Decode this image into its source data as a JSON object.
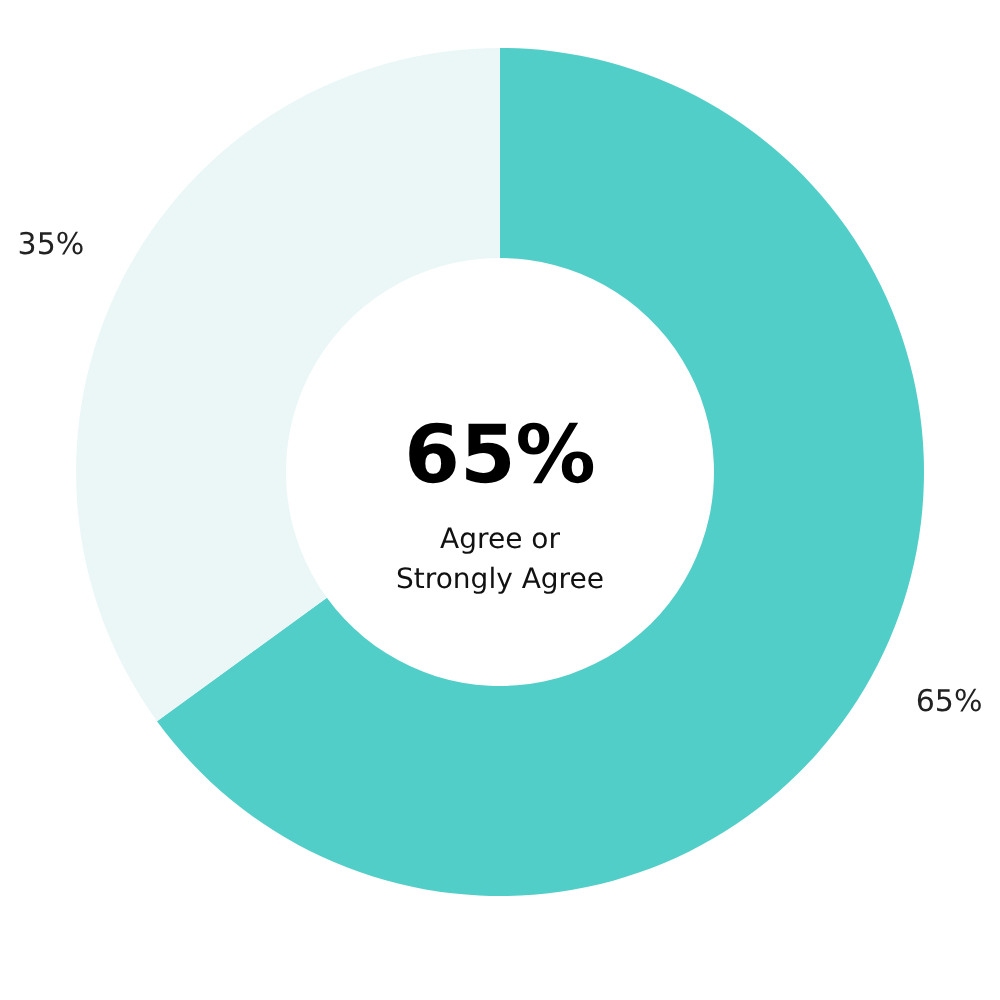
{
  "chart_data": {
    "type": "donut",
    "categories": [
      null,
      null
    ],
    "values": [
      65,
      35
    ],
    "colors": [
      "#52cec9",
      "#ebf7f7"
    ],
    "value_labels": [
      "65%",
      "35%"
    ],
    "annotations": [
      "65%",
      "Agree or Strongly Agree"
    ]
  }
}
